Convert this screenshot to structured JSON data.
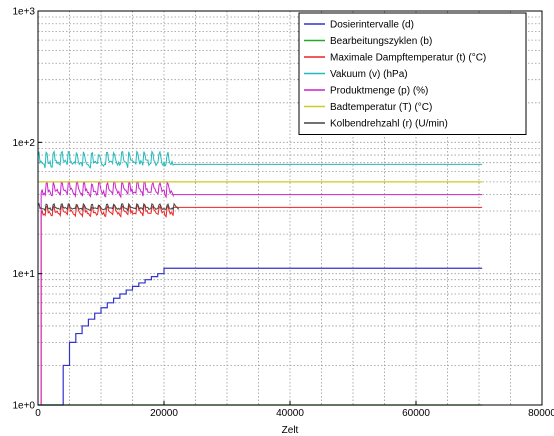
{
  "chart_data": {
    "type": "line",
    "title": "",
    "xlabel": "Zelt",
    "ylabel": "",
    "xlim": [
      0,
      80000
    ],
    "ylim": [
      1,
      1000
    ],
    "y_scale": "log",
    "x_ticks": [
      0,
      20000,
      40000,
      60000,
      80000
    ],
    "x_tick_labels": [
      "0",
      "20000",
      "40000",
      "60000",
      "80000"
    ],
    "y_ticks": [
      1,
      10,
      100,
      1000
    ],
    "y_tick_labels": [
      "1e+0",
      "1e+1",
      "1e+2",
      "1e+3"
    ],
    "grid": true,
    "legend_position": "top-right",
    "series": [
      {
        "name": "Dosierintervalle (d)",
        "color": "#3333cc",
        "shape": "step",
        "x": [
          0,
          4000,
          5000,
          6000,
          7000,
          8000,
          9000,
          10000,
          11000,
          12000,
          13000,
          14000,
          15000,
          16000,
          17000,
          18000,
          19000,
          20000,
          70500
        ],
        "y": [
          1,
          2,
          3,
          3.5,
          4,
          4.5,
          5,
          5.5,
          6,
          6.5,
          7,
          7.5,
          8,
          8.5,
          9,
          9.5,
          10,
          11,
          11
        ]
      },
      {
        "name": "Bearbeitungszyklen (b)",
        "color": "#22aa22",
        "shape": "flat",
        "x": [
          0,
          70500
        ],
        "y": [
          1,
          1
        ]
      },
      {
        "name": "Maximale Dampftemperatur (t) (°C)",
        "color": "#ee2222",
        "shape": "osc",
        "x_start": 500,
        "x_osc_end": 21500,
        "x_end": 70500,
        "osc_low": 27,
        "osc_high": 33,
        "y_final": 32
      },
      {
        "name": "Vakuum (v) (hPa)",
        "color": "#22bbbb",
        "shape": "osc",
        "x_start": 0,
        "y_start": 1000,
        "x_osc_end": 21500,
        "x_end": 70500,
        "osc_low": 62,
        "osc_high": 85,
        "y_final": 68
      },
      {
        "name": "Produktmenge (p) (%)",
        "color": "#cc22cc",
        "shape": "osc",
        "x_start": 500,
        "x_osc_end": 21500,
        "x_end": 70500,
        "osc_low": 38,
        "osc_high": 50,
        "y_final": 40
      },
      {
        "name": "Badtemperatur (T) (°C)",
        "color": "#cccc22",
        "shape": "flat",
        "x": [
          200,
          70500
        ],
        "y": [
          50,
          50
        ]
      },
      {
        "name": "Kolbendrehzahl (r) (U/min)",
        "color": "#444444",
        "shape": "osc",
        "x_start": 0,
        "x_osc_end": 22500,
        "x_end": 22500,
        "osc_low": 30,
        "osc_high": 34,
        "y_final": 32
      }
    ]
  }
}
